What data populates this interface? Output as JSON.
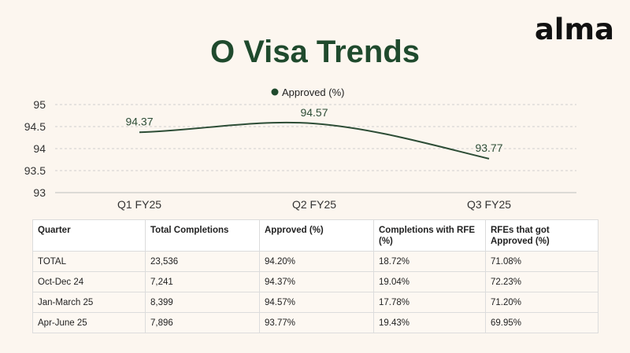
{
  "brand": {
    "logo": "alma"
  },
  "page": {
    "title": "O Visa Trends"
  },
  "colors": {
    "accent": "#1f4a2d",
    "line": "#2d4d36",
    "grid": "#cfcfcf",
    "background": "#fcf6ef"
  },
  "chart_data": {
    "type": "line",
    "categories": [
      "Q1 FY25",
      "Q2 FY25",
      "Q3 FY25"
    ],
    "series": [
      {
        "name": "Approved (%)",
        "values": [
          94.37,
          94.57,
          93.77
        ]
      }
    ],
    "ylim": [
      93,
      95
    ],
    "yticks": [
      "93",
      "93.5",
      "94",
      "94.5",
      "95"
    ],
    "legend": "top-center",
    "grid": true,
    "smooth": true,
    "data_labels": [
      "94.37",
      "94.57",
      "93.77"
    ]
  },
  "table": {
    "headers": [
      "Quarter",
      "Total Completions",
      "Approved (%)",
      "Completions with RFE (%)",
      "RFEs that got Approved (%)"
    ],
    "rows": [
      [
        "TOTAL",
        "23,536",
        "94.20%",
        "18.72%",
        "71.08%"
      ],
      [
        "Oct-Dec 24",
        "7,241",
        "94.37%",
        "19.04%",
        "72.23%"
      ],
      [
        "Jan-March 25",
        "8,399",
        "94.57%",
        "17.78%",
        "71.20%"
      ],
      [
        "Apr-June 25",
        "7,896",
        "93.77%",
        "19.43%",
        "69.95%"
      ]
    ]
  }
}
